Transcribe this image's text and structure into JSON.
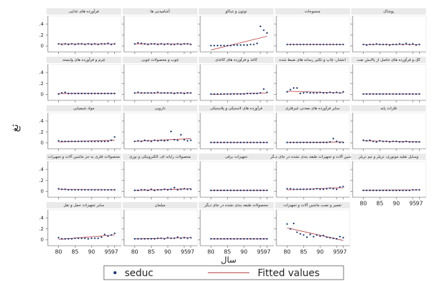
{
  "figure": {
    "ylabel": "ثغ",
    "xlabel": "سال",
    "x": [
      80,
      81,
      82,
      83,
      84,
      85,
      86,
      87,
      88,
      89,
      90,
      91,
      92,
      93,
      94,
      95,
      96,
      97
    ],
    "xlim": [
      78,
      99
    ],
    "ylim": [
      -0.08,
      0.5
    ],
    "xticks": [
      80,
      85,
      90,
      95,
      97
    ],
    "yticks": [
      0,
      {
        "value": 0.2,
        "label": ".2"
      },
      {
        "value": 0.4,
        "label": ".4"
      }
    ]
  },
  "chart_data": [
    {
      "type": "scatter",
      "title": "فرآورده های غذایی",
      "series": [
        {
          "name": "seduc",
          "color": "#1a3a7a",
          "values": [
            0.04,
            0.03,
            0.04,
            0.03,
            0.04,
            0.03,
            0.04,
            0.04,
            0.03,
            0.04,
            0.03,
            0.04,
            0.03,
            0.04,
            0.04,
            0.05,
            0.03,
            0.04
          ]
        },
        {
          "name": "Fitted values",
          "color": "#b03030",
          "x": [
            80,
            97
          ],
          "values": [
            0.04,
            0.04
          ]
        }
      ]
    },
    {
      "type": "scatter",
      "title": "آشامیدنی ها",
      "series": [
        {
          "name": "seduc",
          "color": "#1a3a7a",
          "values": [
            0.04,
            0.06,
            0.05,
            0.04,
            0.03,
            0.04,
            0.04,
            0.03,
            0.04,
            0.03,
            0.04,
            0.03,
            0.03,
            0.04,
            0.03,
            0.04,
            0.04,
            0.03
          ]
        },
        {
          "name": "Fitted values",
          "color": "#b03030",
          "x": [
            80,
            97
          ],
          "values": [
            0.04,
            0.04
          ]
        }
      ]
    },
    {
      "type": "scatter",
      "title": "توتون و تنباکو",
      "series": [
        {
          "name": "seduc",
          "color": "#1a3a7a",
          "values": [
            0.01,
            0.01,
            0.01,
            0.01,
            0.01,
            0.01,
            0.01,
            0.02,
            0.02,
            0.02,
            0.02,
            0.02,
            0.03,
            0.03,
            0.05,
            0.36,
            0.29,
            0.24
          ]
        },
        {
          "name": "Fitted values",
          "color": "#b03030",
          "x": [
            80,
            97
          ],
          "values": [
            -0.07,
            0.18
          ]
        }
      ]
    },
    {
      "type": "scatter",
      "title": "منسوجات",
      "series": [
        {
          "name": "seduc",
          "color": "#1a3a7a",
          "values": [
            0.03,
            0.03,
            0.03,
            0.03,
            0.03,
            0.03,
            0.03,
            0.03,
            0.03,
            0.03,
            0.03,
            0.03,
            0.03,
            0.03,
            0.03,
            0.03,
            0.03,
            0.03
          ]
        },
        {
          "name": "Fitted values",
          "color": "#b03030",
          "x": [
            80,
            97
          ],
          "values": [
            0.03,
            0.03
          ]
        }
      ]
    },
    {
      "type": "scatter",
      "title": "پوشاک",
      "series": [
        {
          "name": "seduc",
          "color": "#1a3a7a",
          "values": [
            0.03,
            0.02,
            0.03,
            0.03,
            0.04,
            0.03,
            0.03,
            0.03,
            0.02,
            0.03,
            0.03,
            0.04,
            0.03,
            0.05,
            0.03,
            0.04,
            0.02,
            0.03
          ]
        },
        {
          "name": "Fitted values",
          "color": "#b03030",
          "x": [
            80,
            97
          ],
          "values": [
            0.03,
            0.03
          ]
        }
      ]
    },
    {
      "type": "scatter",
      "title": "چرم و فرآورده های وابسته",
      "series": [
        {
          "name": "seduc",
          "color": "#1a3a7a",
          "values": [
            0.01,
            0.03,
            0.04,
            0.02,
            0.02,
            0.02,
            0.02,
            0.02,
            0.02,
            0.02,
            0.02,
            0.02,
            0.02,
            0.02,
            0.02,
            0.02,
            0.02,
            0.02
          ]
        },
        {
          "name": "Fitted values",
          "color": "#b03030",
          "x": [
            80,
            97
          ],
          "values": [
            0.02,
            0.02
          ]
        }
      ]
    },
    {
      "type": "scatter",
      "title": "چوب و محصولات چوبی",
      "series": [
        {
          "name": "seduc",
          "color": "#1a3a7a",
          "values": [
            0.03,
            0.04,
            0.03,
            0.03,
            0.03,
            0.03,
            0.03,
            0.04,
            0.03,
            0.03,
            0.03,
            0.03,
            0.02,
            0.03,
            0.03,
            0.02,
            0.03,
            0.03
          ]
        },
        {
          "name": "Fitted values",
          "color": "#b03030",
          "x": [
            80,
            97
          ],
          "values": [
            0.03,
            0.03
          ]
        }
      ]
    },
    {
      "type": "scatter",
      "title": "کاغذ و فرآورده های کاغذی",
      "series": [
        {
          "name": "seduc",
          "color": "#1a3a7a",
          "values": [
            0.01,
            0.01,
            0.01,
            0.01,
            0.01,
            0.01,
            0.01,
            0.01,
            0.01,
            0.01,
            0.01,
            0.02,
            0.02,
            0.02,
            0.02,
            0.03,
            0.1,
            0.04
          ]
        },
        {
          "name": "Fitted values",
          "color": "#b03030",
          "x": [
            80,
            97
          ],
          "values": [
            0,
            0.03
          ]
        }
      ]
    },
    {
      "type": "scatter",
      "title": "انتشار، چاپ و تکثیر رسانه های ضبط شده",
      "series": [
        {
          "name": "seduc",
          "color": "#1a3a7a",
          "values": [
            0.05,
            0.09,
            0.12,
            0.12,
            0.02,
            0.03,
            0.04,
            0.03,
            0.03,
            0.03,
            0.04,
            0.03,
            0.03,
            0.04,
            0.03,
            0.04,
            0.03,
            0.05
          ]
        },
        {
          "name": "Fitted values",
          "color": "#b03030",
          "x": [
            80,
            97
          ],
          "values": [
            0.06,
            0.03
          ]
        }
      ]
    },
    {
      "type": "scatter",
      "title": "کک و فرآورده های حاصل از پالایش نفت",
      "series": [
        {
          "name": "seduc",
          "color": "#1a3a7a",
          "values": [
            0.01,
            0.01,
            0.01,
            0.01,
            0.01,
            0.01,
            0.01,
            0.01,
            0.01,
            0.01,
            0.01,
            0.01,
            0.01,
            0.01,
            0.01,
            0.01,
            0.01,
            0.01
          ]
        },
        {
          "name": "Fitted values",
          "color": "#b03030",
          "x": [
            80,
            97
          ],
          "values": [
            0.01,
            0.01
          ]
        }
      ]
    },
    {
      "type": "scatter",
      "title": "مواد شیمیایی",
      "series": [
        {
          "name": "seduc",
          "color": "#1a3a7a",
          "values": [
            0.04,
            0.03,
            0.03,
            0.03,
            0.03,
            0.03,
            0.03,
            0.03,
            0.03,
            0.03,
            0.03,
            0.03,
            0.03,
            0.03,
            0.03,
            0.03,
            0.05,
            0.11
          ]
        },
        {
          "name": "Fitted values",
          "color": "#b03030",
          "x": [
            80,
            97
          ],
          "values": [
            0.02,
            0.05
          ]
        }
      ]
    },
    {
      "type": "scatter",
      "title": "دارویی",
      "series": [
        {
          "name": "seduc",
          "color": "#1a3a7a",
          "values": [
            0.03,
            0.04,
            0.03,
            0.05,
            0.04,
            0.03,
            0.05,
            0.04,
            0.05,
            0.04,
            0.05,
            0.21,
            0.06,
            0.05,
            0.15,
            0.06,
            0.04,
            0.05
          ]
        },
        {
          "name": "Fitted values",
          "color": "#b03030",
          "x": [
            80,
            97
          ],
          "values": [
            0.03,
            0.08
          ]
        }
      ]
    },
    {
      "type": "scatter",
      "title": "فرآورده های لاستیکی و پلاستیکی",
      "series": [
        {
          "name": "seduc",
          "color": "#1a3a7a",
          "values": [
            0.01,
            0.01,
            0.01,
            0.01,
            0.01,
            0.01,
            0.01,
            0.01,
            0.01,
            0.01,
            0.01,
            0.01,
            0.01,
            0.01,
            0.01,
            0.01,
            0.01,
            0.01
          ]
        },
        {
          "name": "Fitted values",
          "color": "#b03030",
          "x": [
            80,
            97
          ],
          "values": [
            0.01,
            0.01
          ]
        }
      ]
    },
    {
      "type": "scatter",
      "title": "سایر فرآورده های معدنی غیرفلزی",
      "series": [
        {
          "name": "seduc",
          "color": "#1a3a7a",
          "values": [
            0.01,
            0.01,
            0.01,
            0.01,
            0.01,
            0.01,
            0.01,
            0.01,
            0.01,
            0.01,
            0.01,
            0.01,
            0.01,
            0.02,
            0.08,
            0.03,
            0.01,
            0.01
          ]
        },
        {
          "name": "Fitted values",
          "color": "#b03030",
          "x": [
            80,
            97
          ],
          "values": [
            0.01,
            0.02
          ]
        }
      ]
    },
    {
      "type": "scatter",
      "title": "فلزات پایه",
      "series": [
        {
          "name": "seduc",
          "color": "#1a3a7a",
          "values": [
            0.05,
            0.04,
            0.05,
            0.03,
            0.02,
            0.04,
            0.03,
            0.03,
            0.02,
            0.03,
            0.03,
            0.02,
            0.02,
            0.03,
            0.02,
            0.02,
            0.02,
            0.02
          ]
        },
        {
          "name": "Fitted values",
          "color": "#b03030",
          "x": [
            80,
            97
          ],
          "values": [
            0.04,
            0.02
          ]
        }
      ]
    },
    {
      "type": "scatter",
      "title": "محصولات فلزی به جز ماشین آلات و تجهیزات",
      "series": [
        {
          "name": "seduc",
          "color": "#1a3a7a",
          "values": [
            0.05,
            0.04,
            0.04,
            0.03,
            0.03,
            0.03,
            0.03,
            0.03,
            0.03,
            0.03,
            0.03,
            0.03,
            0.03,
            0.03,
            0.03,
            0.03,
            0.03,
            0.03
          ]
        },
        {
          "name": "Fitted values",
          "color": "#b03030",
          "x": [
            80,
            97
          ],
          "values": [
            0.04,
            0.03
          ]
        }
      ]
    },
    {
      "type": "scatter",
      "title": "محصولات رایانه ای، الکترونیکی و نوری",
      "series": [
        {
          "name": "seduc",
          "color": "#1a3a7a",
          "values": [
            0.02,
            0.02,
            0.03,
            0.03,
            0.02,
            0.04,
            0.02,
            0.03,
            0.03,
            0.04,
            0.03,
            0.04,
            0.07,
            0.03,
            0.04,
            0.05,
            0.04,
            0.04
          ]
        },
        {
          "name": "Fitted values",
          "color": "#b03030",
          "x": [
            80,
            97
          ],
          "values": [
            0.02,
            0.05
          ]
        }
      ]
    },
    {
      "type": "scatter",
      "title": "تجهیزات برقی",
      "series": [
        {
          "name": "seduc",
          "color": "#1a3a7a",
          "values": [
            0.02,
            0.02,
            0.02,
            0.02,
            0.02,
            0.02,
            0.02,
            0.02,
            0.02,
            0.02,
            0.02,
            0.02,
            0.02,
            0.02,
            0.02,
            0.02,
            0.02,
            0.02
          ]
        },
        {
          "name": "Fitted values",
          "color": "#b03030",
          "x": [
            80,
            97
          ],
          "values": [
            0.02,
            0.02
          ]
        }
      ]
    },
    {
      "type": "scatter",
      "title": "ماشین آلات و تجهیزات طبقه بندی نشده در جای دیگر",
      "series": [
        {
          "name": "seduc",
          "color": "#1a3a7a",
          "values": [
            0.05,
            0.05,
            0.04,
            0.04,
            0.04,
            0.04,
            0.04,
            0.04,
            0.04,
            0.05,
            0.04,
            0.04,
            0.05,
            0.06,
            0.05,
            0.04,
            0.08,
            0.09
          ]
        },
        {
          "name": "Fitted values",
          "color": "#b03030",
          "x": [
            80,
            97
          ],
          "values": [
            0.03,
            0.07
          ]
        }
      ]
    },
    {
      "type": "scatter",
      "title": "وسایل نقلیه موتوری، تریلر و نیم تریلر",
      "series": [
        {
          "name": "seduc",
          "color": "#1a3a7a",
          "values": [
            0.02,
            0.02,
            0.02,
            0.02,
            0.02,
            0.02,
            0.02,
            0.02,
            0.02,
            0.02,
            0.02,
            0.02,
            0.02,
            0.02,
            0.02,
            0.03,
            0.03,
            0.03
          ]
        },
        {
          "name": "Fitted values",
          "color": "#b03030",
          "x": [
            80,
            97
          ],
          "values": [
            0.02,
            0.03
          ]
        }
      ]
    },
    {
      "type": "scatter",
      "title": "سایر تجهیزات حمل و نقل",
      "series": [
        {
          "name": "seduc",
          "color": "#1a3a7a",
          "values": [
            0.04,
            0.02,
            0.02,
            0.02,
            0.02,
            0.03,
            0.03,
            0.03,
            0.03,
            0.02,
            0.03,
            0.03,
            0.03,
            0.05,
            0.1,
            0.07,
            0.09,
            0.12
          ]
        },
        {
          "name": "Fitted values",
          "color": "#b03030",
          "x": [
            80,
            97
          ],
          "values": [
            0.01,
            0.09
          ]
        }
      ]
    },
    {
      "type": "scatter",
      "title": "مبلمان",
      "series": [
        {
          "name": "seduc",
          "color": "#1a3a7a",
          "values": [
            0.02,
            0.02,
            0.02,
            0.02,
            0.02,
            0.02,
            0.02,
            0.03,
            0.03,
            0.02,
            0.04,
            0.03,
            0.03,
            0.05,
            0.03,
            0.04,
            0.03,
            0.04
          ]
        },
        {
          "name": "Fitted values",
          "color": "#b03030",
          "x": [
            80,
            97
          ],
          "values": [
            0.02,
            0.04
          ]
        }
      ]
    },
    {
      "type": "scatter",
      "title": "محصولات طبقه بندی نشده در جای دیگر",
      "series": [
        {
          "name": "seduc",
          "color": "#1a3a7a",
          "values": [
            0.02,
            0.02,
            0.02,
            0.02,
            0.02,
            0.02,
            0.02,
            0.02,
            0.02,
            0.02,
            0.02,
            0.02,
            0.02,
            0.02,
            0.02,
            0.02,
            0.02,
            0.02
          ]
        },
        {
          "name": "Fitted values",
          "color": "#b03030",
          "x": [
            80,
            97
          ],
          "values": [
            0.02,
            0.02
          ]
        }
      ]
    },
    {
      "type": "scatter",
      "title": "تعمیر و نصب ماشین آلات و تجهیزات",
      "series": [
        {
          "name": "seduc",
          "color": "#1a3a7a",
          "values": [
            0.29,
            0.2,
            0.3,
            0.14,
            0.11,
            0.09,
            0.05,
            0.1,
            0.06,
            0.09,
            0.07,
            0.08,
            0.05,
            0.04,
            0.03,
            0.02,
            0.06,
            0.04
          ]
        },
        {
          "name": "Fitted values",
          "color": "#b03030",
          "x": [
            80,
            97
          ],
          "values": [
            0.22,
            -0.01
          ]
        }
      ]
    }
  ]
}
